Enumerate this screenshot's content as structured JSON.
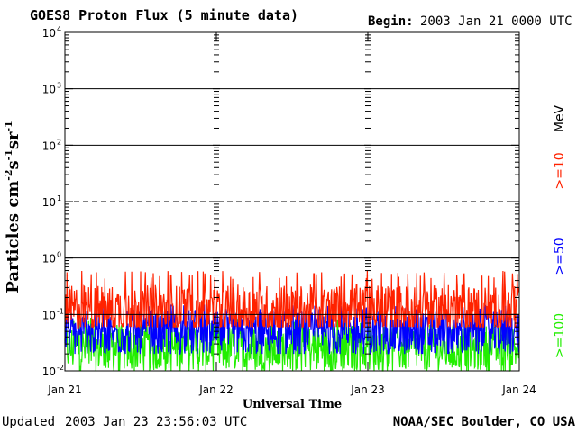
{
  "title": "GOES8 Proton Flux (5 minute data)",
  "begin_label": "Begin:",
  "begin_value": "2003 Jan 21 0000 UTC",
  "updated_label": "Updated",
  "updated_value": "2003 Jan 23 23:56:03 UTC",
  "credit": "NOAA/SEC Boulder, CO USA",
  "colors": {
    "ge10": "#ff2200",
    "ge50": "#0000ff",
    "ge100": "#22ee00",
    "axis": "#000000"
  },
  "chart_data": {
    "type": "line",
    "title": "GOES8 Proton Flux (5 minute data)",
    "xlabel": "Universal Time",
    "ylabel_base": "Particles cm",
    "ylabel_exp1": "-2",
    "ylabel_mid1": "s",
    "ylabel_exp2": "-1",
    "ylabel_mid2": "sr",
    "ylabel_exp3": "-1",
    "yscale": "log",
    "ylim": [
      0.01,
      10000
    ],
    "y_ticks": [
      {
        "base": "10",
        "exp": "-2",
        "value": 0.01
      },
      {
        "base": "10",
        "exp": "-1",
        "value": 0.1
      },
      {
        "base": "10",
        "exp": "0",
        "value": 1
      },
      {
        "base": "10",
        "exp": "1",
        "value": 10
      },
      {
        "base": "10",
        "exp": "2",
        "value": 100
      },
      {
        "base": "10",
        "exp": "3",
        "value": 1000
      },
      {
        "base": "10",
        "exp": "4",
        "value": 10000
      }
    ],
    "x_ticks": [
      "Jan 21",
      "Jan 22",
      "Jan 23",
      "Jan 24"
    ],
    "xlim_days": [
      0,
      3
    ],
    "gridlines": [
      {
        "value": 10000,
        "style": "dashed"
      },
      {
        "value": 1000,
        "style": "solid"
      },
      {
        "value": 100,
        "style": "solid"
      },
      {
        "value": 10,
        "style": "dashed"
      },
      {
        "value": 1,
        "style": "solid"
      },
      {
        "value": 0.1,
        "style": "solid"
      }
    ],
    "legend_placement": "right, vertical",
    "legend": [
      {
        "label": ">=10",
        "color": "#ff2200"
      },
      {
        "label": ">=50",
        "color": "#0000ff"
      },
      {
        "label": ">=100",
        "color": "#22ee00"
      }
    ],
    "legend_unit": "MeV",
    "series": [
      {
        "name": ">=10",
        "color": "#ff2200",
        "typical_value": 0.12,
        "range": [
          0.06,
          0.6
        ]
      },
      {
        "name": ">=50",
        "color": "#0000ff",
        "typical_value": 0.045,
        "range": [
          0.02,
          0.15
        ]
      },
      {
        "name": ">=100",
        "color": "#22ee00",
        "typical_value": 0.025,
        "range": [
          0.01,
          0.09
        ]
      }
    ]
  }
}
